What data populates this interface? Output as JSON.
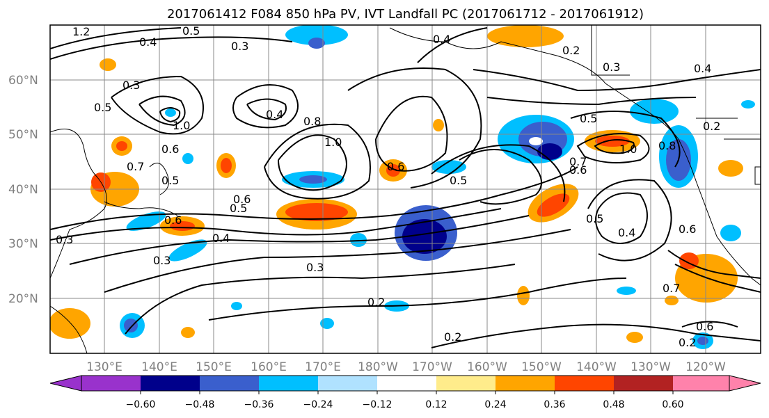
{
  "title": "2017061412 F084 850 hPa PV, IVT Landfall PC (2017061712 - 2017061912)",
  "lat_labels": [
    "60°N",
    "50°N",
    "40°N",
    "30°N",
    "20°N"
  ],
  "lon_labels": [
    "130°E",
    "140°E",
    "150°E",
    "160°E",
    "170°E",
    "180°W",
    "170°W",
    "160°W",
    "150°W",
    "140°W",
    "130°W",
    "120°W"
  ],
  "colorbar": {
    "ticks": [
      "−0.60",
      "−0.48",
      "−0.36",
      "−0.24",
      "−0.12",
      "0.12",
      "0.24",
      "0.36",
      "0.48",
      "0.60"
    ],
    "colors": [
      "#9932cc",
      "#00008b",
      "#3a5fcd",
      "#00bfff",
      "#b0e2ff",
      "#ffffff",
      "#ffec8b",
      "#ffa500",
      "#ff4500",
      "#b22222",
      "#ff82ab"
    ]
  },
  "contour_labels": [
    "1.2",
    "0.4",
    "0.5",
    "0.3",
    "0.4",
    "0.2",
    "0.3",
    "0.4",
    "0.3",
    "0.5",
    "1.0",
    "0.4",
    "0.8",
    "1.0",
    "0.5",
    "0.6",
    "0.7",
    "1.0",
    "0.8",
    "0.2",
    "0.6",
    "0.5",
    "0.6",
    "0.5",
    "0.4",
    "0.6",
    "0.3",
    "0.3",
    "0.2",
    "0.7",
    "0.2",
    "0.6",
    "0.2",
    "0.3",
    "0.4",
    "0.5",
    "0.6",
    "0.7",
    "0.6",
    "0.5"
  ],
  "styles": {
    "grid_color": "#888888",
    "contour_color": "#000000",
    "label_color": "#808080"
  }
}
